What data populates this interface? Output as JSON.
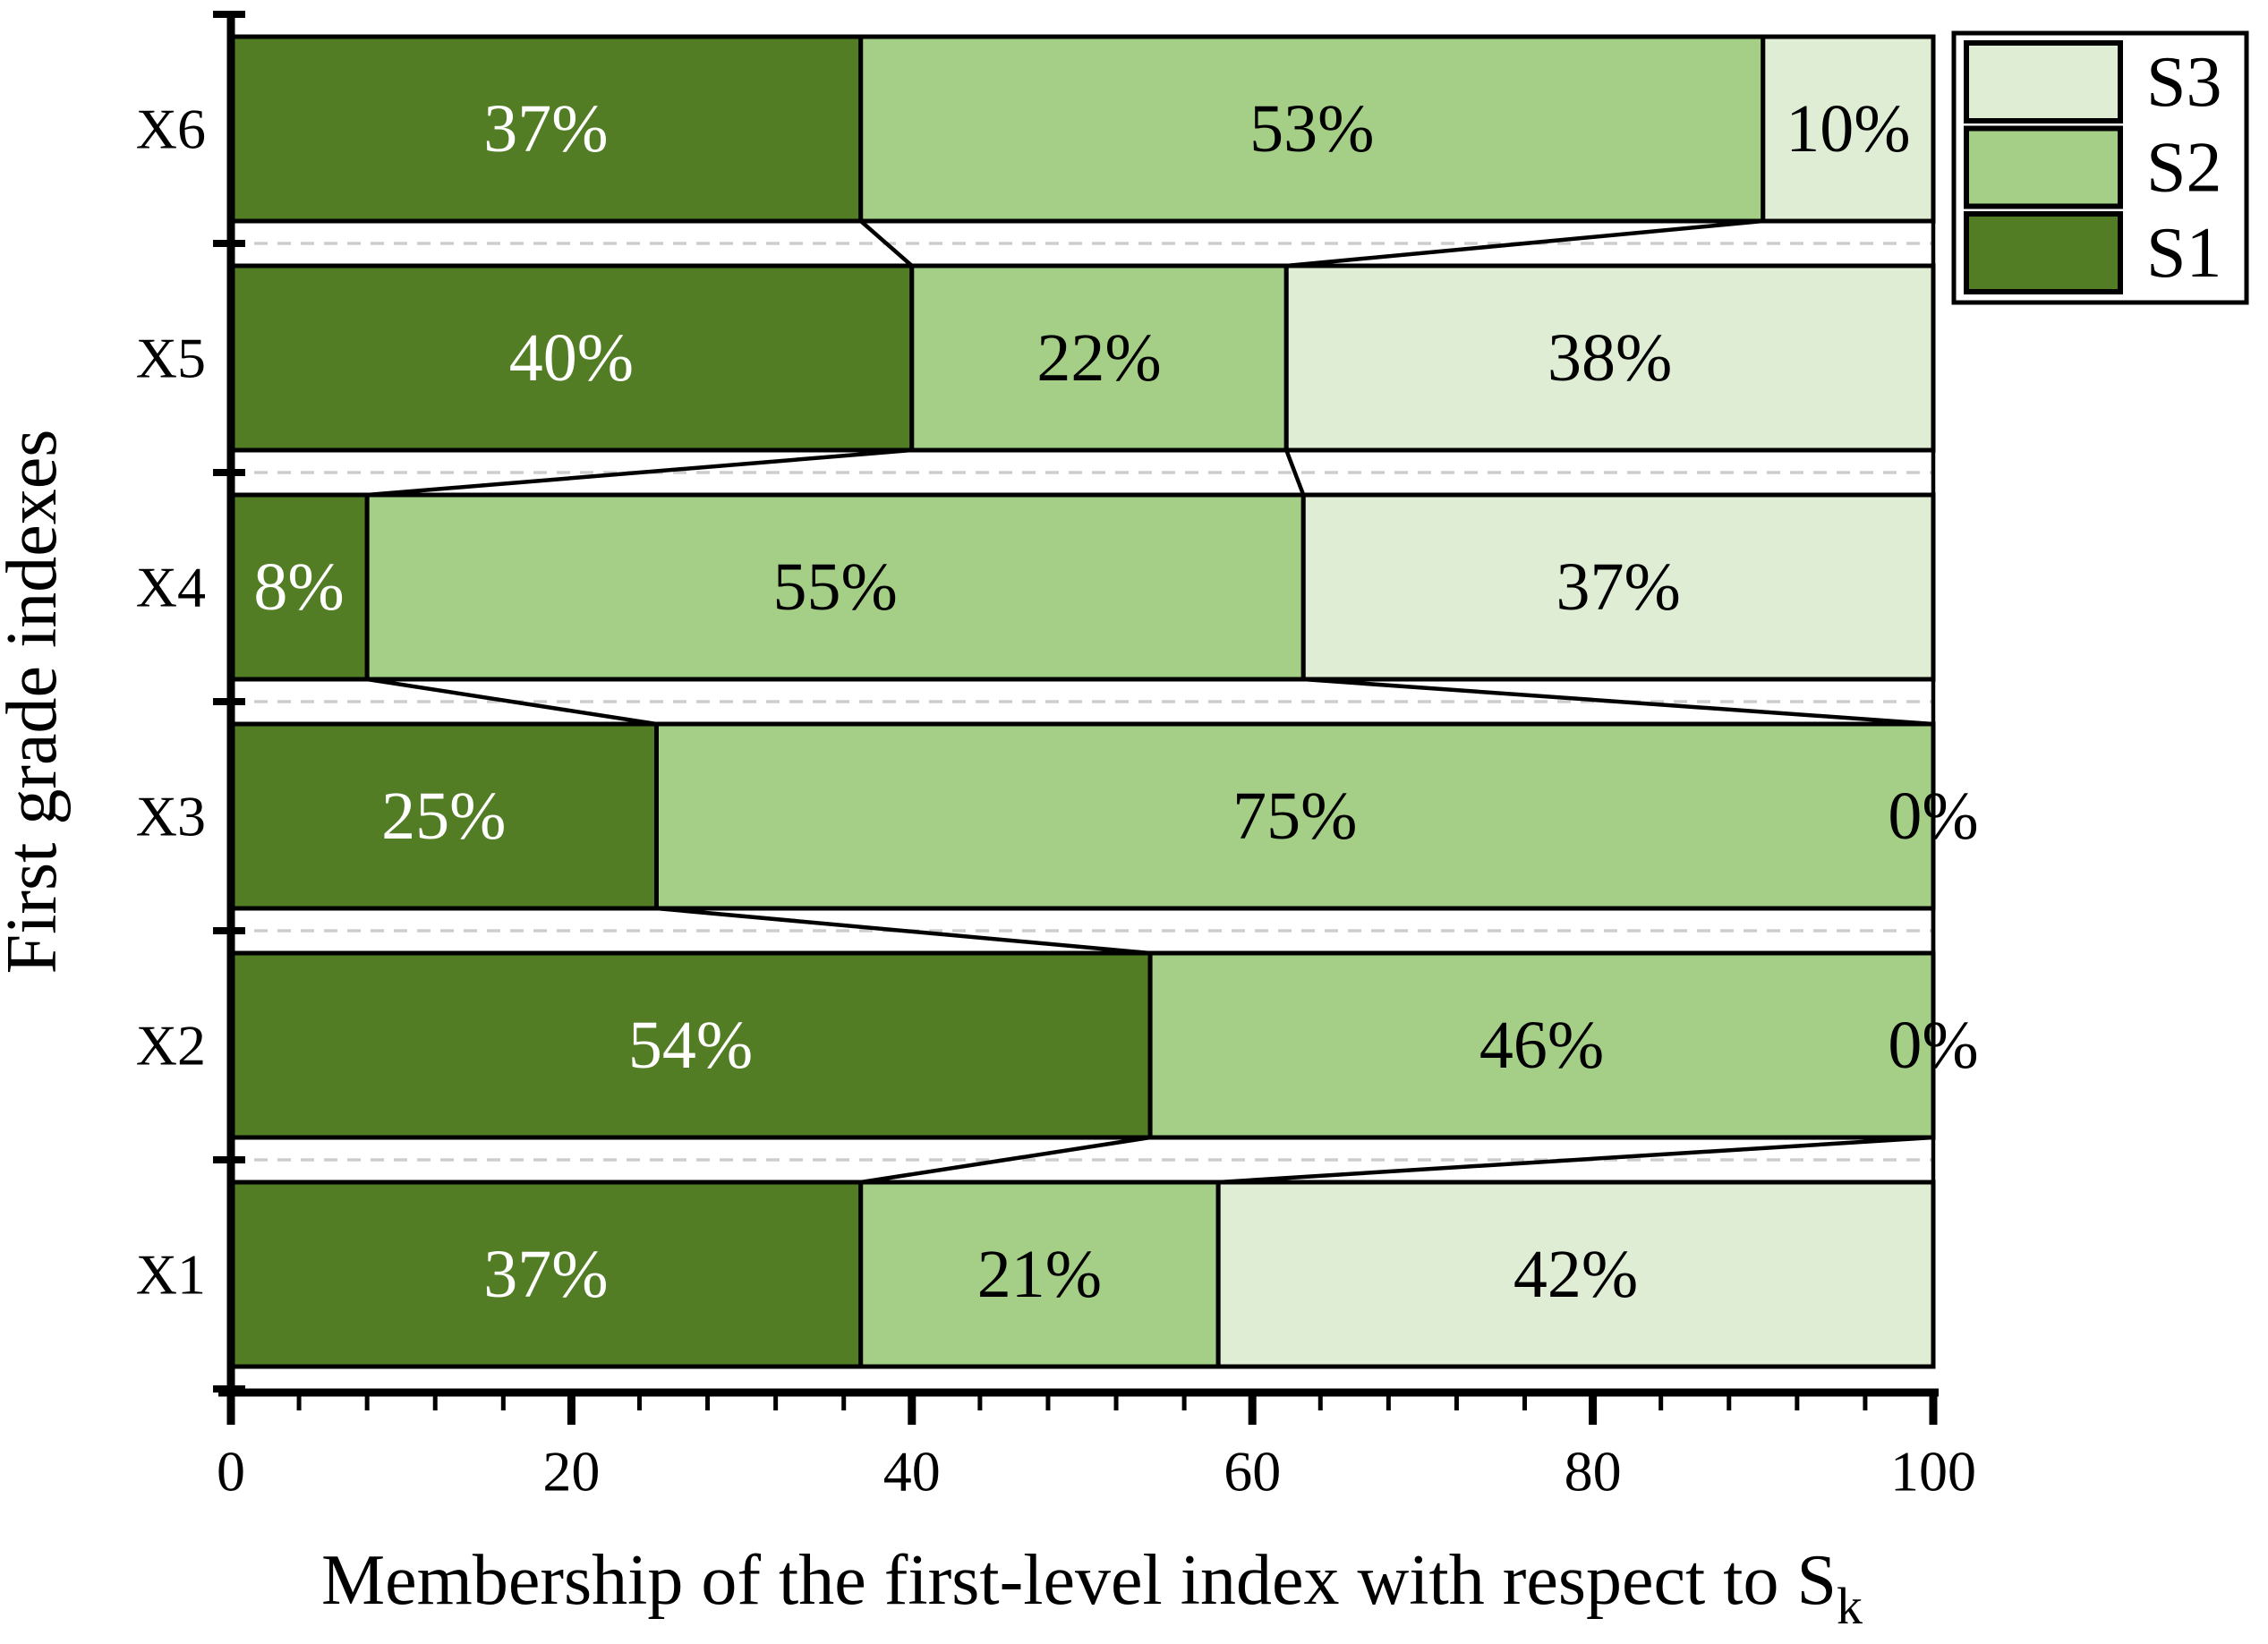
{
  "chart_data": {
    "type": "bar",
    "variant": "horizontal_stacked_percent",
    "title": "",
    "xlabel_main": "Membership of the first-level index with respect to S",
    "xlabel_sub": "k",
    "ylabel": "First grade indexes",
    "xlim": [
      0,
      100
    ],
    "x_major_ticks": [
      0,
      20,
      40,
      60,
      80,
      100
    ],
    "x_minor_tick_step": 4,
    "value_suffix": "%",
    "series_order_in_bar": [
      "S1",
      "S2",
      "S3"
    ],
    "series_styles": {
      "S1": {
        "color": "#527d24",
        "label_color": "#ffffff"
      },
      "S2": {
        "color": "#a5cf86",
        "label_color": "#000000"
      },
      "S3": {
        "color": "#deedd3",
        "label_color": "#000000"
      }
    },
    "rows_top_to_bottom": [
      {
        "category": "X6",
        "S1": 37,
        "S2": 53,
        "S3": 10
      },
      {
        "category": "X5",
        "S1": 40,
        "S2": 22,
        "S3": 38
      },
      {
        "category": "X4",
        "S1": 8,
        "S2": 55,
        "S3": 37
      },
      {
        "category": "X3",
        "S1": 25,
        "S2": 75,
        "S3": 0
      },
      {
        "category": "X2",
        "S1": 54,
        "S2": 46,
        "S3": 0
      },
      {
        "category": "X1",
        "S1": 37,
        "S2": 21,
        "S3": 42
      }
    ],
    "legend_entries_top_to_bottom": [
      "S3",
      "S2",
      "S1"
    ],
    "grid": "dashed horizontal lines between category rows",
    "legend_position": "top-right",
    "connectors_between_bars": true,
    "axis_color": "#000000",
    "grid_color": "#cdcdcd",
    "background": "#ffffff"
  }
}
